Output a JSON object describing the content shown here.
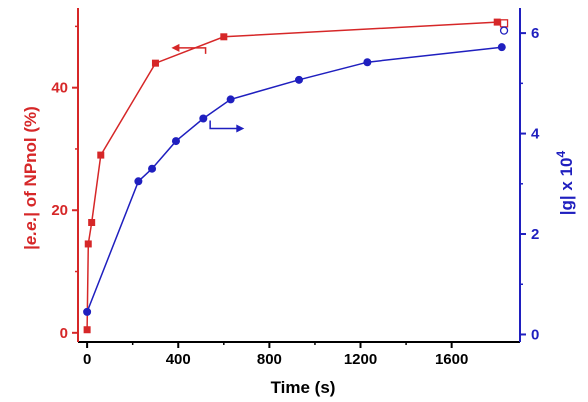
{
  "chart_data": {
    "type": "line",
    "xlabel": "Time (s)",
    "xlim": [
      -40,
      1900
    ],
    "x_ticks": [
      0,
      400,
      800,
      1200,
      1600
    ],
    "y_left": {
      "label_prefix": "|",
      "label_italic": "e.e.",
      "label_suffix": "| of NPnol (%)",
      "ylim": [
        -1.5,
        53
      ],
      "ticks": [
        0,
        20,
        40
      ],
      "color": "#d62728"
    },
    "y_right": {
      "label_main": "|g| x 10",
      "label_exp": "4",
      "ylim": [
        -0.15,
        6.5
      ],
      "ticks": [
        0,
        2,
        4,
        6
      ],
      "color": "#1f1fbf"
    },
    "series": [
      {
        "axis": "left",
        "color": "#d62728",
        "marker": "square",
        "x": [
          0,
          5,
          20,
          60,
          300,
          600,
          1800
        ],
        "y": [
          0.5,
          14.5,
          18,
          29,
          44,
          48.3,
          50.7
        ]
      },
      {
        "axis": "right",
        "color": "#1f1fbf",
        "marker": "circle",
        "x": [
          0,
          225,
          285,
          390,
          510,
          630,
          930,
          1230,
          1820
        ],
        "y": [
          0.45,
          3.05,
          3.3,
          3.85,
          4.3,
          4.68,
          5.07,
          5.42,
          5.72
        ]
      }
    ],
    "annotations": [
      {
        "type": "open-square",
        "axis": "left",
        "x": 1830,
        "y": 50.5,
        "color": "#d62728"
      },
      {
        "type": "open-circle",
        "axis": "right",
        "x": 1830,
        "y": 6.05,
        "color": "#1f1fbf"
      },
      {
        "type": "arrow-left",
        "axis": "left",
        "x_from": 520,
        "x_to": 370,
        "y": 46.5,
        "color": "#d62728"
      },
      {
        "type": "arrow-right",
        "axis": "right",
        "x_from": 540,
        "x_to": 690,
        "y": 4.1,
        "color": "#1f1fbf"
      }
    ]
  }
}
